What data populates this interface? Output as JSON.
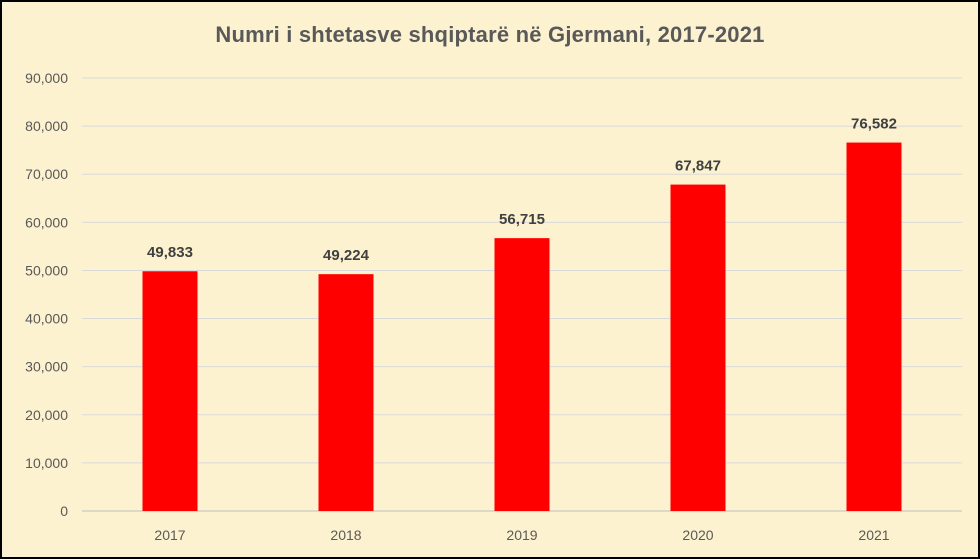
{
  "chart_data": {
    "type": "bar",
    "title": "Numri i shtetasve shqiptarë në Gjermani, 2017-2021",
    "categories": [
      "2017",
      "2018",
      "2019",
      "2020",
      "2021"
    ],
    "values": [
      49833,
      49224,
      56715,
      67847,
      76582
    ],
    "value_labels": [
      "49,833",
      "49,224",
      "56,715",
      "67,847",
      "76,582"
    ],
    "y_ticks": [
      "0",
      "10,000",
      "20,000",
      "30,000",
      "40,000",
      "50,000",
      "60,000",
      "70,000",
      "80,000",
      "90,000"
    ],
    "ylim": [
      0,
      90000
    ],
    "grid": true,
    "legend": "none",
    "colors": {
      "bar": "#ff0000",
      "background": "#fdf2d0",
      "grid": "#d9d9d9",
      "title": "#595959",
      "tick_text": "#595959",
      "value_text": "#404040"
    }
  }
}
